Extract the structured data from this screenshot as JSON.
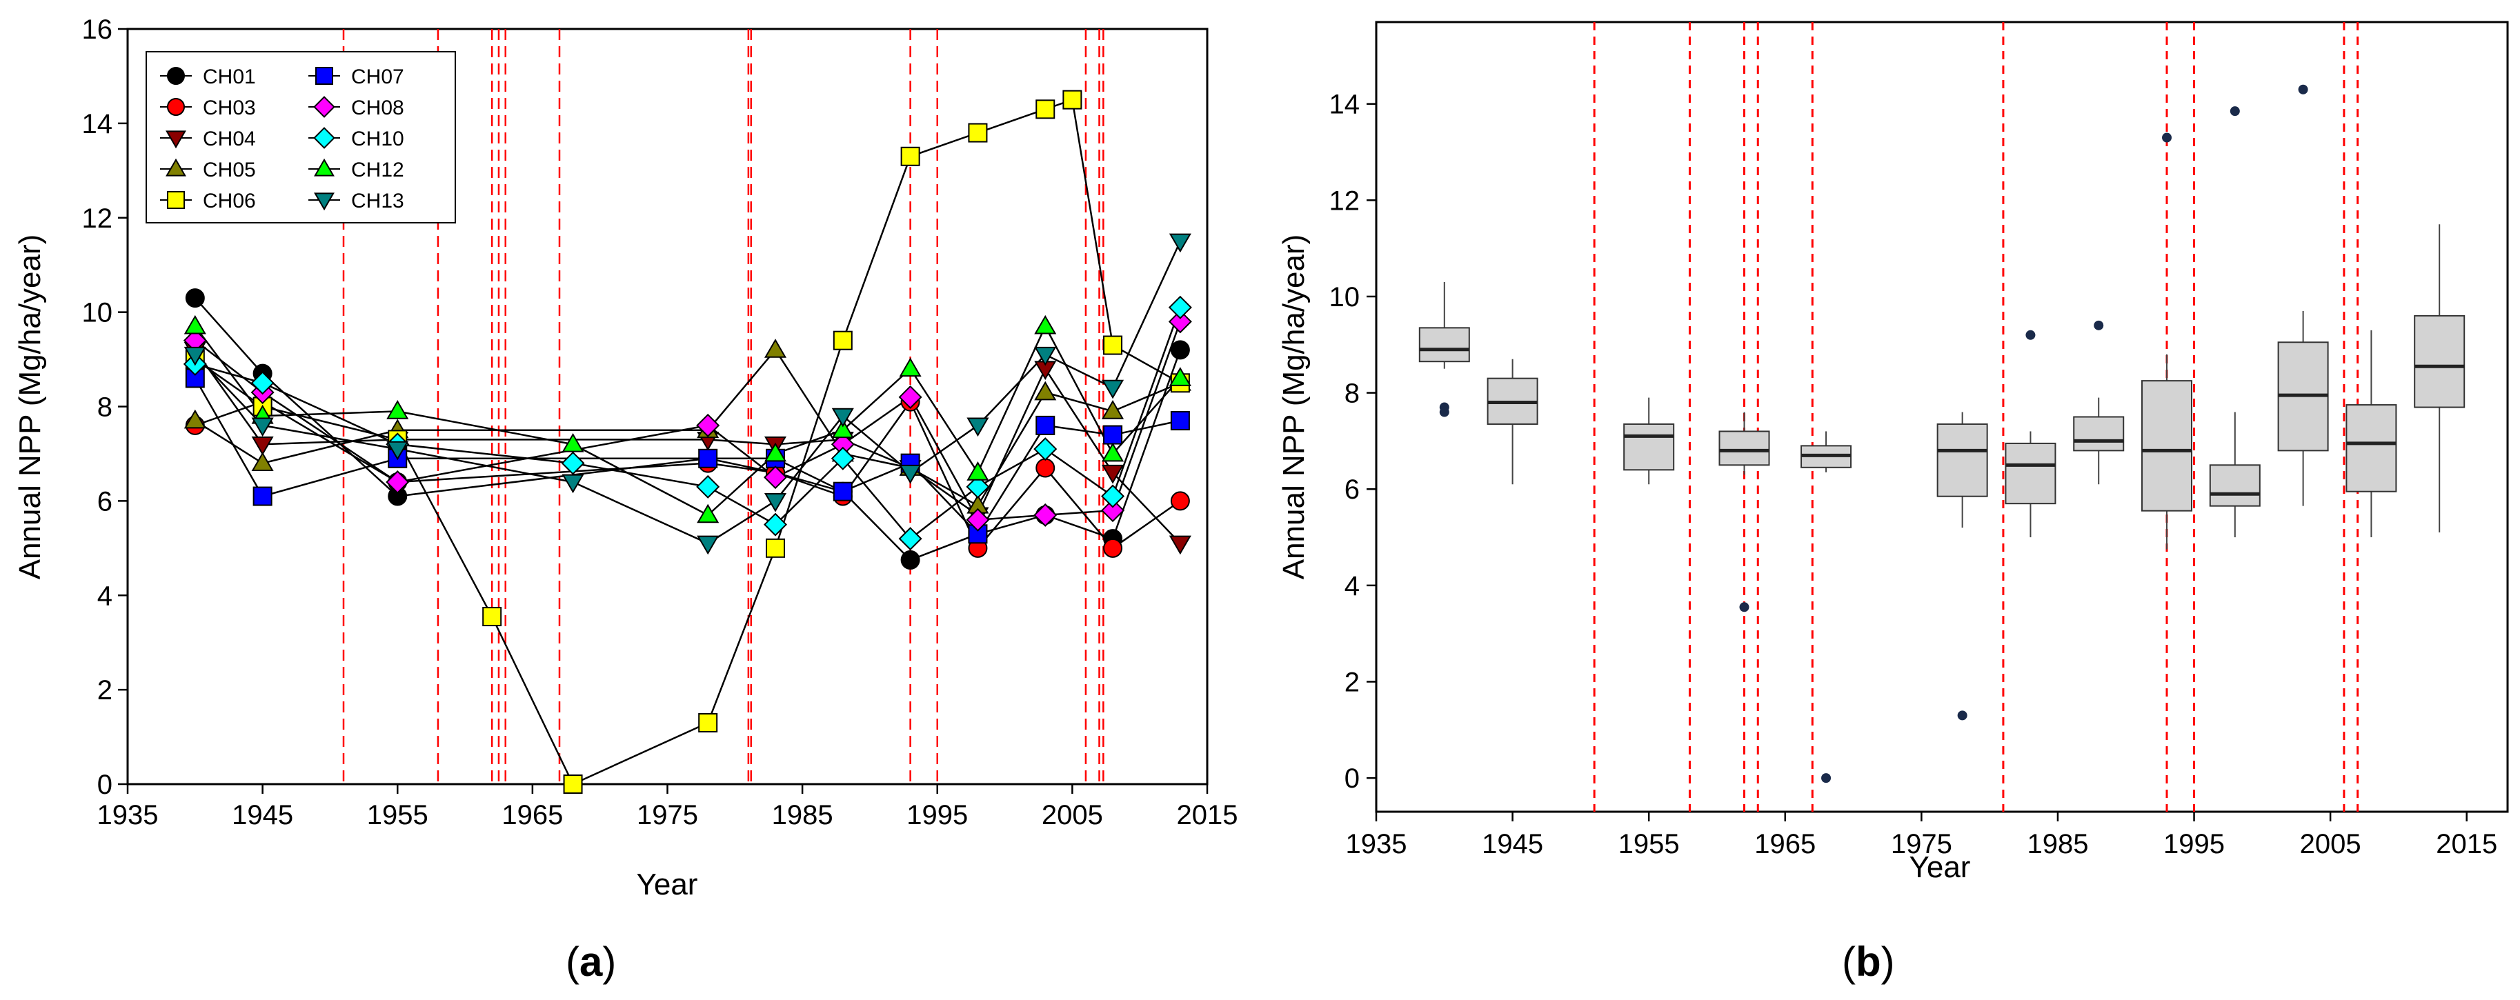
{
  "chart_data": [
    {
      "panel": "a",
      "type": "line",
      "caption_open": "(",
      "caption_label": "a",
      "caption_close": ")",
      "xlabel": "Year",
      "ylabel": "Annual NPP (Mg/ha/year)",
      "xlim": [
        1935,
        2015
      ],
      "ylim": [
        0,
        16
      ],
      "xticks": [
        1935,
        1945,
        1955,
        1965,
        1975,
        1985,
        1995,
        2005,
        2015
      ],
      "yticks": [
        0,
        2,
        4,
        6,
        8,
        10,
        12,
        14,
        16
      ],
      "vlines": [
        1951,
        1958,
        1962,
        1962.5,
        1963,
        1967,
        1981,
        1981.2,
        1993,
        1995,
        2006,
        2007,
        2007.3
      ],
      "vline_color": "#ff0000",
      "series": [
        {
          "name": "CH01",
          "marker": "circle",
          "color": "#000000",
          "x": [
            1940,
            1945,
            1955,
            1978,
            1983,
            1988,
            1993,
            1998,
            2003,
            2008,
            2013
          ],
          "values": [
            10.3,
            8.7,
            6.1,
            6.9,
            6.6,
            6.2,
            4.75,
            5.3,
            5.7,
            5.2,
            9.2
          ]
        },
        {
          "name": "CH03",
          "marker": "circle",
          "color": "#ff0000",
          "x": [
            1940,
            1945,
            1955,
            1978,
            1983,
            1988,
            1993,
            1998,
            2003,
            2008,
            2013
          ],
          "values": [
            7.6,
            8.1,
            6.4,
            6.8,
            6.6,
            6.1,
            8.1,
            5.0,
            6.7,
            5.0,
            6.0
          ]
        },
        {
          "name": "CH04",
          "marker": "triangle-down",
          "color": "#8b0000",
          "x": [
            1940,
            1945,
            1955,
            1978,
            1983,
            1988,
            1993,
            1998,
            2003,
            2008,
            2013
          ],
          "values": [
            9.2,
            7.2,
            7.3,
            7.3,
            7.2,
            7.3,
            6.7,
            5.7,
            8.8,
            6.6,
            5.1
          ]
        },
        {
          "name": "CH05",
          "marker": "triangle-up",
          "color": "#808000",
          "x": [
            1940,
            1945,
            1955,
            1978,
            1983,
            1988,
            1993,
            1998,
            2003,
            2008,
            2013
          ],
          "values": [
            7.7,
            6.8,
            7.5,
            7.5,
            9.2,
            7.0,
            6.7,
            5.9,
            8.3,
            7.9,
            8.5
          ]
        },
        {
          "name": "CH06",
          "marker": "square",
          "color": "#ffff00",
          "x": [
            1940,
            1945,
            1955,
            1962,
            1968,
            1978,
            1983,
            1988,
            1993,
            1998,
            2003,
            2005,
            2008,
            2013
          ],
          "values": [
            9.0,
            8.0,
            7.3,
            3.55,
            0.0,
            1.3,
            5.0,
            9.4,
            13.3,
            13.8,
            14.3,
            14.5,
            9.3,
            8.5
          ]
        },
        {
          "name": "CH07",
          "marker": "square",
          "color": "#0000ff",
          "x": [
            1940,
            1945,
            1955,
            1978,
            1983,
            1988,
            1993,
            1998,
            2003,
            2008,
            2013
          ],
          "values": [
            8.6,
            6.1,
            6.9,
            6.9,
            6.9,
            6.2,
            6.8,
            5.3,
            7.6,
            7.4,
            7.7
          ]
        },
        {
          "name": "CH08",
          "marker": "diamond",
          "color": "#ff00ff",
          "x": [
            1940,
            1945,
            1955,
            1978,
            1983,
            1988,
            1993,
            1998,
            2003,
            2008,
            2013
          ],
          "values": [
            9.4,
            8.3,
            6.4,
            7.6,
            6.5,
            7.2,
            8.2,
            5.6,
            5.7,
            5.8,
            9.8
          ]
        },
        {
          "name": "CH10",
          "marker": "diamond",
          "color": "#00ffff",
          "x": [
            1940,
            1945,
            1955,
            1968,
            1978,
            1983,
            1988,
            1993,
            1998,
            2003,
            2008,
            2013
          ],
          "values": [
            8.9,
            8.5,
            7.2,
            6.8,
            6.3,
            5.5,
            6.9,
            5.2,
            6.3,
            7.1,
            6.1,
            10.1
          ]
        },
        {
          "name": "CH12",
          "marker": "triangle-up",
          "color": "#00ff00",
          "x": [
            1940,
            1945,
            1955,
            1968,
            1978,
            1983,
            1988,
            1993,
            1998,
            2003,
            2008,
            2013
          ],
          "values": [
            9.7,
            7.8,
            7.9,
            7.2,
            5.7,
            7.0,
            7.5,
            8.8,
            6.6,
            9.7,
            7.0,
            8.6
          ]
        },
        {
          "name": "CH13",
          "marker": "triangle-down",
          "color": "#008080",
          "x": [
            1940,
            1945,
            1955,
            1968,
            1978,
            1983,
            1988,
            1993,
            1998,
            2003,
            2008,
            2013
          ],
          "values": [
            9.1,
            7.6,
            7.1,
            6.4,
            5.1,
            6.0,
            7.8,
            6.6,
            7.6,
            9.1,
            8.4,
            11.5
          ]
        }
      ]
    },
    {
      "panel": "b",
      "type": "box",
      "caption_open": "(",
      "caption_label": "b",
      "caption_close": ")",
      "xlabel": "Year",
      "ylabel": "Annual NPP (Mg/ha/year)",
      "xlim": [
        1935,
        2018
      ],
      "ylim": [
        -0.7,
        15.7
      ],
      "xticks": [
        1935,
        1945,
        1955,
        1965,
        1975,
        1985,
        1995,
        2005,
        2015
      ],
      "yticks": [
        0,
        2,
        4,
        6,
        8,
        10,
        12,
        14
      ],
      "vlines": [
        1951,
        1958,
        1962,
        1963,
        1967,
        1981,
        1993,
        1995,
        2006,
        2007
      ],
      "vline_color": "#ff0000",
      "box_color": "#d3d3d3",
      "outlier_color": "#1a2a4a",
      "boxes": [
        {
          "x": 1940,
          "min": 8.5,
          "q1": 8.65,
          "median": 8.9,
          "q3": 9.35,
          "max": 10.3,
          "outliers": [
            7.6,
            7.7
          ]
        },
        {
          "x": 1945,
          "min": 6.1,
          "q1": 7.35,
          "median": 7.8,
          "q3": 8.3,
          "max": 8.7,
          "outliers": []
        },
        {
          "x": 1955,
          "min": 6.1,
          "q1": 6.4,
          "median": 7.1,
          "q3": 7.35,
          "max": 7.9,
          "outliers": []
        },
        {
          "x": 1962,
          "min": 6.3,
          "q1": 6.5,
          "median": 6.8,
          "q3": 7.2,
          "max": 7.6,
          "outliers": [
            3.55
          ]
        },
        {
          "x": 1968,
          "min": 6.35,
          "q1": 6.45,
          "median": 6.7,
          "q3": 6.9,
          "max": 7.2,
          "outliers": [
            0
          ]
        },
        {
          "x": 1978,
          "min": 5.2,
          "q1": 5.85,
          "median": 6.8,
          "q3": 7.35,
          "max": 7.6,
          "outliers": [
            1.3
          ]
        },
        {
          "x": 1983,
          "min": 5.0,
          "q1": 5.7,
          "median": 6.5,
          "q3": 6.95,
          "max": 7.2,
          "outliers": [
            9.2
          ]
        },
        {
          "x": 1988,
          "min": 6.1,
          "q1": 6.8,
          "median": 7.0,
          "q3": 7.5,
          "max": 7.9,
          "outliers": [
            9.4
          ]
        },
        {
          "x": 1993,
          "min": 4.75,
          "q1": 5.55,
          "median": 6.8,
          "q3": 8.25,
          "max": 8.8,
          "outliers": [
            13.3
          ]
        },
        {
          "x": 1998,
          "min": 5.0,
          "q1": 5.65,
          "median": 5.9,
          "q3": 6.5,
          "max": 7.6,
          "outliers": [
            13.85
          ]
        },
        {
          "x": 2003,
          "min": 5.65,
          "q1": 6.8,
          "median": 7.95,
          "q3": 9.05,
          "max": 9.7,
          "outliers": [
            14.3
          ]
        },
        {
          "x": 2008,
          "min": 5.0,
          "q1": 5.95,
          "median": 6.95,
          "q3": 7.75,
          "max": 9.3,
          "outliers": []
        },
        {
          "x": 2013,
          "min": 5.1,
          "q1": 7.7,
          "median": 8.55,
          "q3": 9.6,
          "max": 11.5,
          "outliers": []
        }
      ]
    }
  ]
}
